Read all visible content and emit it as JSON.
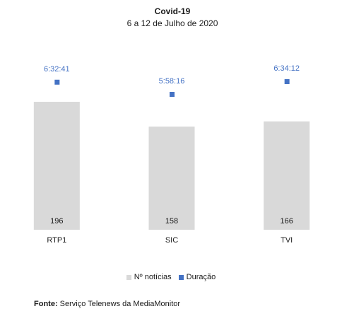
{
  "chart_data": {
    "type": "bar",
    "title": "Covid-19",
    "subtitle": "6 a 12 de Julho de 2020",
    "categories": [
      "RTP1",
      "SIC",
      "TVI"
    ],
    "series": [
      {
        "name": "Nº notícias",
        "values": [
          196,
          158,
          166
        ],
        "labels": [
          "196",
          "158",
          "166"
        ],
        "color": "#d9d9d9",
        "kind": "bar"
      },
      {
        "name": "Duração",
        "values": [
          "6:32:41",
          "5:58:16",
          "6:34:12"
        ],
        "labels": [
          "6:32:41",
          "5:58:16",
          "6:34:12"
        ],
        "color": "#4472c4",
        "kind": "marker"
      }
    ],
    "ylim": [
      0,
      250
    ],
    "legend": "bottom",
    "grid": false,
    "label_color": "#4472c4"
  },
  "source": {
    "label": "Fonte:",
    "text": "Serviço Telenews da MediaMonitor"
  }
}
